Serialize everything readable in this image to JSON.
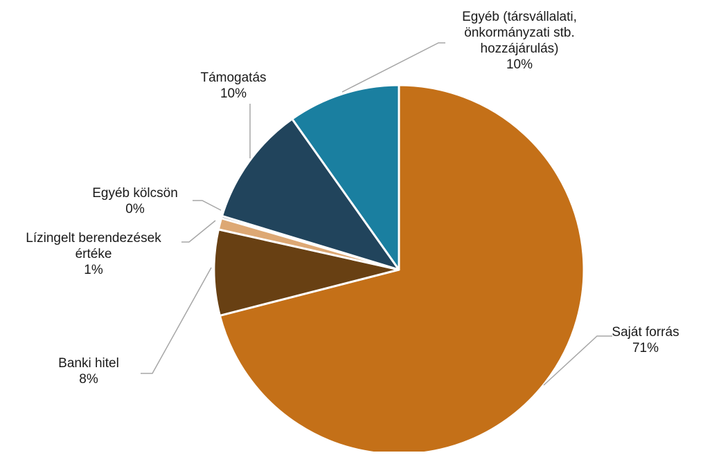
{
  "chart_data": {
    "type": "pie",
    "title": "",
    "slices": [
      {
        "label_lines": [
          "Saját forrás"
        ],
        "value_label": "71%",
        "value": 71.0,
        "color": "#C47018"
      },
      {
        "label_lines": [
          "Banki hitel"
        ],
        "value_label": "8%",
        "value": 7.5,
        "color": "#684013"
      },
      {
        "label_lines": [
          "Lízingelt berendezések",
          "értéke"
        ],
        "value_label": "1%",
        "value": 1.0,
        "color": "#DDA874"
      },
      {
        "label_lines": [
          "Egyéb kölcsön"
        ],
        "value_label": "0%",
        "value": 0.2,
        "color": "#1F2A44"
      },
      {
        "label_lines": [
          "Támogatás"
        ],
        "value_label": "10%",
        "value": 10.5,
        "color": "#21445C"
      },
      {
        "label_lines": [
          "Egyéb (társvállalati,",
          "önkormányzati stb.",
          "hozzájárulás)"
        ],
        "value_label": "10%",
        "value": 9.8,
        "color": "#1A7FA0"
      }
    ],
    "start_angle": "12 o'clock",
    "direction": "clockwise",
    "legend": "none",
    "data_labels": "outside with leader lines"
  }
}
